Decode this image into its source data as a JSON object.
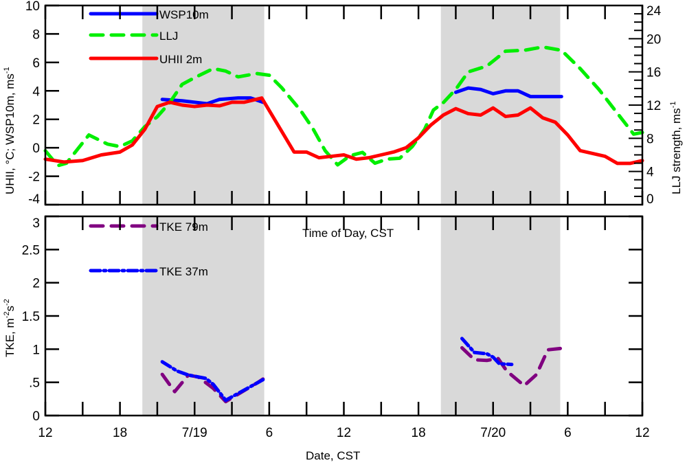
{
  "chart_data": [
    {
      "type": "line",
      "panel": "top",
      "x_unit": "hours since 12:00 CST 7/18",
      "xlim": [
        0,
        48
      ],
      "x_ticks": [
        0,
        3,
        6,
        9,
        12,
        15,
        18,
        21,
        24,
        27,
        30,
        33,
        36,
        39,
        42,
        45,
        48
      ],
      "ylabel": "UHII, °C; WSP10m, ms",
      "ylabel_sup_units": "-1",
      "ylim": [
        -4,
        10
      ],
      "y_ticks": [
        -4,
        -2,
        0,
        2,
        4,
        6,
        8,
        10
      ],
      "y_tick_labels": [
        "-4",
        "-2",
        "0",
        "2",
        "4",
        "6",
        "8",
        "10"
      ],
      "y2label": "LLJ strength, ms",
      "y2label_sup_units": "-1",
      "y2lim": [
        0,
        24
      ],
      "y2_ticks": [
        0,
        4,
        8,
        12,
        16,
        20,
        24
      ],
      "y2_tick_labels": [
        "0",
        "4",
        "8",
        "12",
        "16",
        "20",
        "24"
      ],
      "shaded_periods": [
        [
          7.8,
          17.6
        ],
        [
          31.8,
          41.4
        ]
      ],
      "annotation": "Time of Day, CST",
      "legend_placement": "top-left",
      "series": [
        {
          "name": "WSP10m",
          "axis": "left",
          "color": "#0000ff",
          "style": "solid",
          "segments": [
            {
              "x": [
                9.4,
                11,
                13,
                14,
                15.5,
                16.5,
                17.5
              ],
              "y": [
                3.4,
                3.3,
                3.1,
                3.4,
                3.5,
                3.5,
                3.2
              ]
            },
            {
              "x": [
                33,
                34,
                35,
                36,
                37,
                38,
                39,
                41.5
              ],
              "y": [
                3.9,
                4.2,
                4.1,
                3.8,
                4.0,
                4.0,
                3.6,
                3.6
              ]
            }
          ]
        },
        {
          "name": "LLJ",
          "axis": "right",
          "color": "#00ee00",
          "style": "dashed",
          "segments": [
            {
              "x": [
                0,
                1,
                1.7,
                3.5,
                5,
                6,
                7,
                8,
                9,
                10,
                11,
                12,
                13.5,
                14.5,
                15.5,
                17,
                18,
                19,
                20.5,
                21.5,
                22.5,
                23.5,
                24.5,
                25.5,
                26.5,
                27.5,
                28.5,
                29.5,
                30.5,
                31.2,
                32,
                33,
                34,
                35.5,
                37,
                38.5,
                40,
                41.5,
                43,
                44.5,
                46,
                47.3,
                48
              ],
              "y": [
                6.5,
                4.7,
                5.0,
                8.4,
                7.3,
                7.0,
                7.7,
                9.4,
                10.6,
                12.3,
                14.5,
                15.3,
                16.4,
                16.1,
                15.4,
                15.8,
                15.6,
                14.1,
                11.4,
                9.2,
                6.5,
                4.8,
                5.9,
                6.3,
                5.0,
                5.5,
                5.6,
                7.0,
                9.1,
                11.4,
                12.3,
                13.9,
                16.0,
                16.7,
                18.5,
                18.6,
                19.0,
                18.6,
                16.4,
                13.9,
                11.0,
                8.5,
                8.7
              ]
            }
          ]
        },
        {
          "name": "UHII 2m",
          "axis": "left",
          "color": "#ff0000",
          "style": "solid",
          "segments": [
            {
              "x": [
                0,
                1.5,
                3,
                4.5,
                6,
                7,
                8,
                9,
                10,
                11,
                12,
                13,
                14,
                15,
                16,
                17.4,
                20,
                21,
                22,
                23,
                24,
                25,
                26,
                27,
                28,
                29,
                30,
                31,
                32,
                33,
                34,
                35,
                36,
                37,
                38,
                39,
                40,
                41,
                42,
                43,
                44,
                45,
                46,
                47,
                48
              ],
              "y": [
                -0.8,
                -1.0,
                -0.9,
                -0.5,
                -0.3,
                0.2,
                1.3,
                2.9,
                3.2,
                3.0,
                2.9,
                3.0,
                2.95,
                3.2,
                3.2,
                3.5,
                -0.3,
                -0.3,
                -0.7,
                -0.6,
                -0.5,
                -0.8,
                -0.7,
                -0.5,
                -0.3,
                0.0,
                0.7,
                1.6,
                2.3,
                2.75,
                2.4,
                2.3,
                2.8,
                2.2,
                2.3,
                2.8,
                2.1,
                1.8,
                0.9,
                -0.2,
                -0.4,
                -0.6,
                -1.1,
                -1.1,
                -0.9
              ]
            }
          ]
        }
      ]
    },
    {
      "type": "line",
      "panel": "bottom",
      "x_unit": "hours since 12:00 CST 7/18",
      "xlim": [
        0,
        48
      ],
      "x_ticks": [
        0,
        3,
        6,
        9,
        12,
        15,
        18,
        21,
        24,
        27,
        30,
        33,
        36,
        39,
        42,
        45,
        48
      ],
      "x_tick_labels": [
        {
          "at": 0,
          "label": "12"
        },
        {
          "at": 6,
          "label": "18"
        },
        {
          "at": 12,
          "label": "7/19"
        },
        {
          "at": 18,
          "label": "6"
        },
        {
          "at": 24,
          "label": "12"
        },
        {
          "at": 30,
          "label": "18"
        },
        {
          "at": 36,
          "label": "7/20"
        },
        {
          "at": 42,
          "label": "6"
        },
        {
          "at": 48,
          "label": "12"
        }
      ],
      "xlabel": "Date, CST",
      "ylabel": "TKE, m",
      "ylabel_sup1": "-2",
      "ylabel_mid": "s",
      "ylabel_sup2": "-2",
      "ylim": [
        0,
        3
      ],
      "y_ticks": [
        0,
        0.5,
        1,
        1.5,
        2,
        2.5,
        3
      ],
      "y_tick_labels": [
        "0",
        ".5",
        "1",
        "1.5",
        "2",
        "2.5",
        "3"
      ],
      "shaded_periods": [
        [
          7.8,
          17.6
        ],
        [
          31.8,
          41.4
        ]
      ],
      "legend_placement": "top-left",
      "series": [
        {
          "name": "TKE 79m",
          "color": "#800080",
          "style": "dashed",
          "segments": [
            {
              "x": [
                9.4,
                10.4,
                11.5,
                12.3,
                13.5,
                14.5,
                17.1,
                17.5
              ],
              "y": [
                0.62,
                0.36,
                0.61,
                0.58,
                0.41,
                0.21,
                0.5,
                0.55
              ]
            },
            {
              "x": [
                33.5,
                34.5,
                35.5,
                36.4,
                37.1,
                38.5,
                39.5,
                40.4,
                41.4
              ],
              "y": [
                1.02,
                0.84,
                0.83,
                0.86,
                0.67,
                0.45,
                0.62,
                0.99,
                1.01
              ]
            }
          ]
        },
        {
          "name": "TKE 37m",
          "color": "#0000ff",
          "style": "dashdot",
          "segments": [
            {
              "x": [
                9.4,
                10.6,
                11.5,
                12.9,
                13.5,
                14.5,
                17.5
              ],
              "y": [
                0.81,
                0.67,
                0.61,
                0.56,
                0.47,
                0.23,
                0.54
              ]
            },
            {
              "x": [
                33.5,
                34.5,
                35.5,
                36,
                36.5,
                37.5
              ],
              "y": [
                1.16,
                0.95,
                0.93,
                0.88,
                0.78,
                0.77
              ]
            }
          ]
        }
      ]
    }
  ]
}
